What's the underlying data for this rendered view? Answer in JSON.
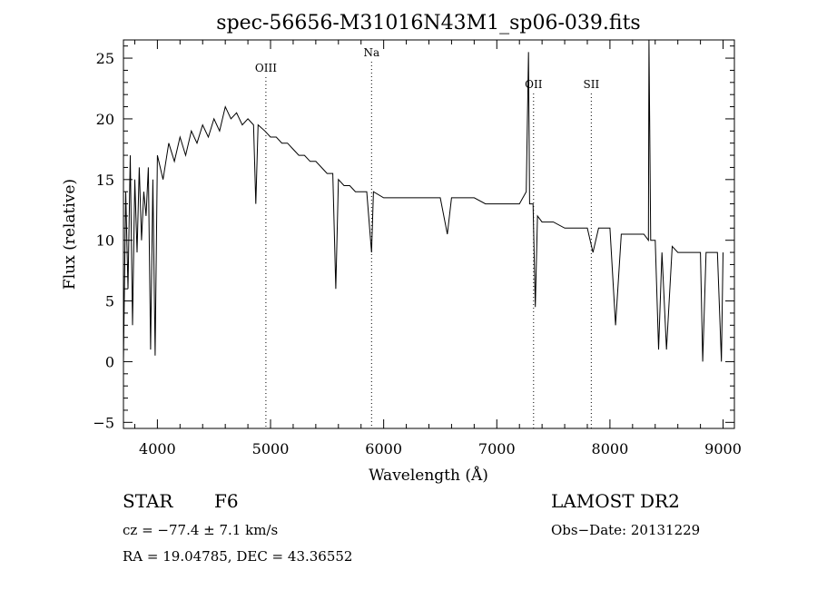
{
  "chart_data": {
    "type": "line",
    "title": "spec-56656-M31016N43M1_sp06-039.fits",
    "xlabel": "Wavelength (Å)",
    "ylabel": "Flux (relative)",
    "xlim": [
      3700,
      9100
    ],
    "ylim": [
      -5.5,
      26.5
    ],
    "x_ticks": [
      4000,
      5000,
      6000,
      7000,
      8000,
      9000
    ],
    "y_ticks": [
      -5,
      0,
      5,
      10,
      15,
      20,
      25
    ],
    "grid": false,
    "line_color": "#000000",
    "series": [
      {
        "values": [
          [
            3700,
            0
          ],
          [
            3720,
            14
          ],
          [
            3740,
            6
          ],
          [
            3760,
            17
          ],
          [
            3780,
            3
          ],
          [
            3800,
            15
          ],
          [
            3820,
            9
          ],
          [
            3840,
            16
          ],
          [
            3860,
            10
          ],
          [
            3880,
            14
          ],
          [
            3900,
            12
          ],
          [
            3920,
            16
          ],
          [
            3940,
            1
          ],
          [
            3960,
            15
          ],
          [
            3980,
            0.5
          ],
          [
            4000,
            17
          ],
          [
            4050,
            15
          ],
          [
            4100,
            18
          ],
          [
            4150,
            16.5
          ],
          [
            4200,
            18.5
          ],
          [
            4250,
            17
          ],
          [
            4300,
            19
          ],
          [
            4350,
            18
          ],
          [
            4400,
            19.5
          ],
          [
            4450,
            18.5
          ],
          [
            4500,
            20
          ],
          [
            4550,
            19
          ],
          [
            4600,
            21
          ],
          [
            4650,
            20
          ],
          [
            4700,
            20.5
          ],
          [
            4750,
            19.5
          ],
          [
            4800,
            20
          ],
          [
            4850,
            19.5
          ],
          [
            4870,
            13
          ],
          [
            4890,
            19.5
          ],
          [
            4950,
            19
          ],
          [
            5000,
            18.5
          ],
          [
            5050,
            18.5
          ],
          [
            5100,
            18
          ],
          [
            5150,
            18
          ],
          [
            5200,
            17.5
          ],
          [
            5250,
            17
          ],
          [
            5300,
            17
          ],
          [
            5350,
            16.5
          ],
          [
            5400,
            16.5
          ],
          [
            5450,
            16
          ],
          [
            5500,
            15.5
          ],
          [
            5550,
            15.5
          ],
          [
            5577,
            6
          ],
          [
            5600,
            15
          ],
          [
            5650,
            14.5
          ],
          [
            5700,
            14.5
          ],
          [
            5750,
            14
          ],
          [
            5800,
            14
          ],
          [
            5850,
            14
          ],
          [
            5893,
            9
          ],
          [
            5910,
            14
          ],
          [
            6000,
            13.5
          ],
          [
            6100,
            13.5
          ],
          [
            6200,
            13.5
          ],
          [
            6300,
            13.5
          ],
          [
            6400,
            13.5
          ],
          [
            6500,
            13.5
          ],
          [
            6563,
            10.5
          ],
          [
            6600,
            13.5
          ],
          [
            6700,
            13.5
          ],
          [
            6800,
            13.5
          ],
          [
            6900,
            13
          ],
          [
            7000,
            13
          ],
          [
            7100,
            13
          ],
          [
            7200,
            13
          ],
          [
            7260,
            14
          ],
          [
            7280,
            25.5
          ],
          [
            7290,
            13
          ],
          [
            7320,
            13
          ],
          [
            7340,
            4.5
          ],
          [
            7360,
            12
          ],
          [
            7400,
            11.5
          ],
          [
            7500,
            11.5
          ],
          [
            7600,
            11
          ],
          [
            7700,
            11
          ],
          [
            7800,
            11
          ],
          [
            7850,
            9
          ],
          [
            7900,
            11
          ],
          [
            8000,
            11
          ],
          [
            8050,
            3
          ],
          [
            8100,
            10.5
          ],
          [
            8200,
            10.5
          ],
          [
            8300,
            10.5
          ],
          [
            8340,
            10
          ],
          [
            8345,
            26.5
          ],
          [
            8360,
            10
          ],
          [
            8400,
            10
          ],
          [
            8430,
            1
          ],
          [
            8460,
            9
          ],
          [
            8500,
            1
          ],
          [
            8550,
            9.5
          ],
          [
            8600,
            9
          ],
          [
            8700,
            9
          ],
          [
            8800,
            9
          ],
          [
            8820,
            0
          ],
          [
            8850,
            9
          ],
          [
            8900,
            9
          ],
          [
            8950,
            9
          ],
          [
            8985,
            0
          ],
          [
            9000,
            9
          ]
        ]
      }
    ],
    "line_markers": [
      {
        "label": "OIII",
        "x": 4959
      },
      {
        "label": "Na",
        "x": 5893
      },
      {
        "label": "OII",
        "x": 7325
      },
      {
        "label": "SII",
        "x": 7835
      }
    ]
  },
  "footer": {
    "obj_class": "STAR",
    "obj_subclass": "F6",
    "survey": "LAMOST DR2",
    "cz": "cz = −77.4 ± 7.1 km/s",
    "obs_date": "Obs−Date: 20131229",
    "radec": "RA =  19.04785, DEC =  43.36552"
  }
}
